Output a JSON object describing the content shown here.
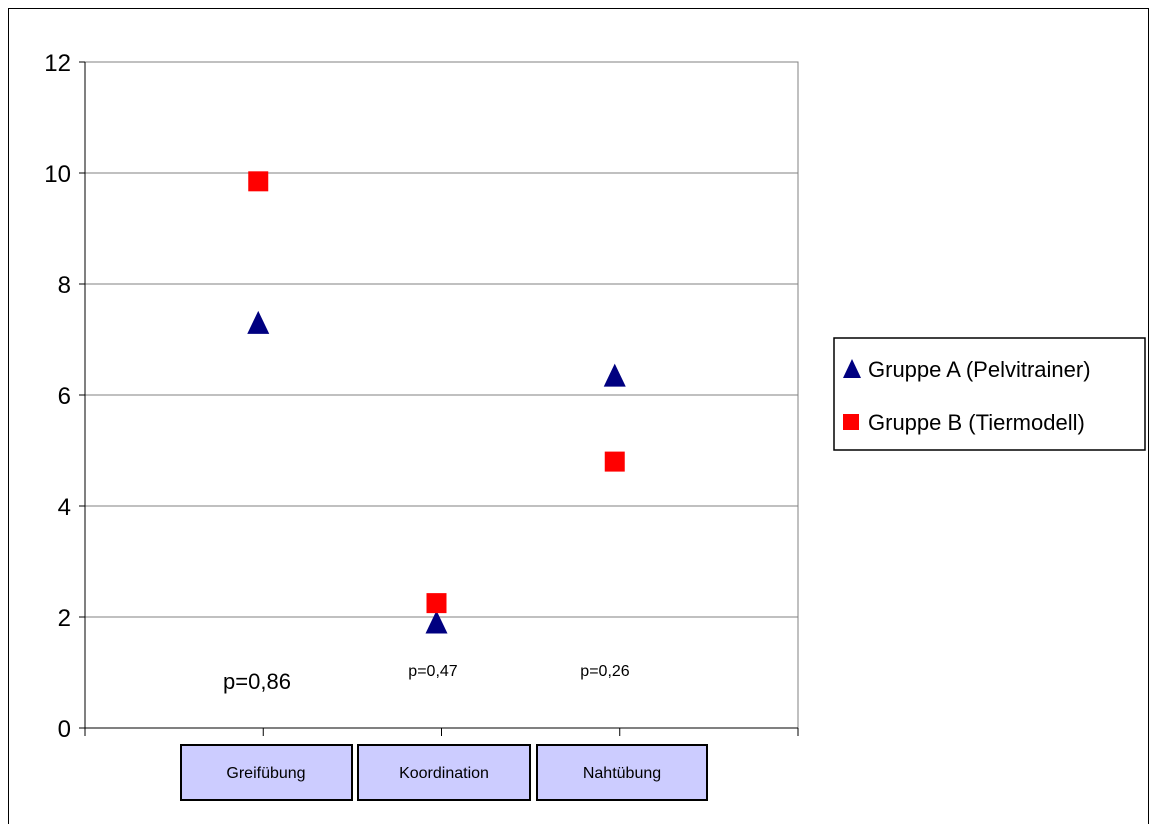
{
  "chart_data": {
    "type": "scatter",
    "categories": [
      "Greifübung",
      "Koordination",
      "Nahtübung"
    ],
    "series": [
      {
        "name": "Gruppe A (Pelvitrainer)",
        "marker": "triangle",
        "color": "#000080",
        "values": [
          7.3,
          1.9,
          6.35
        ]
      },
      {
        "name": "Gruppe B (Tiermodell)",
        "marker": "square",
        "color": "#ff0000",
        "values": [
          9.85,
          2.25,
          4.8
        ]
      }
    ],
    "annotations": [
      "p=0,86",
      "p=0,47",
      "p=0,26"
    ],
    "yticks": [
      "0",
      "2",
      "4",
      "6",
      "8",
      "10",
      "12"
    ],
    "ylim": [
      0,
      12
    ],
    "grid": true,
    "legend_position": "right"
  }
}
